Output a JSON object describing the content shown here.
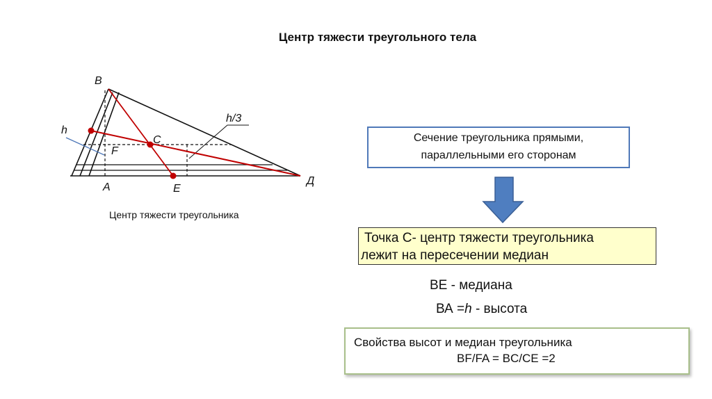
{
  "title": "Центр тяжести треугольного тела",
  "diagram": {
    "labels": {
      "B": "B",
      "h": "h",
      "h3": "h/3",
      "C": "C",
      "F": "F",
      "A": "A",
      "E": "E",
      "D": "Д"
    },
    "caption": "Центр тяжести треугольника",
    "colors": {
      "median": "#c00000",
      "lines": "#111111",
      "pointer": "#4f78b8"
    }
  },
  "box_section": {
    "line1": "Сечение треугольника прямыми,",
    "line2": "параллельными его сторонам"
  },
  "arrow": {
    "icon": "arrow-down-icon",
    "color": "#4f7ec0"
  },
  "box_center": {
    "line1": "Точка С- центр тяжести треугольника",
    "line2": "лежит на пересечении медиан"
  },
  "median_text": "ВЕ - медиана",
  "height_text": {
    "prefix": "ВА =",
    "var": "h",
    "suffix": " - высота"
  },
  "box_props": {
    "line1": "Свойства высот и медиан треугольника",
    "line2": "BF/FA = BC/CE =2"
  }
}
